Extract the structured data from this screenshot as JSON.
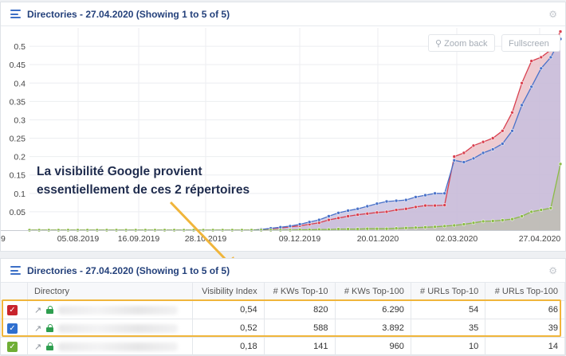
{
  "chart_panel": {
    "title": "Directories - 27.04.2020 (Showing 1 to 5 of 5)",
    "zoom_back": "Zoom back",
    "fullscreen": "Fullscreen"
  },
  "annotation": {
    "line1": "La visibilité Google provient",
    "line2": "essentiellement de ces 2 répertoires"
  },
  "chart_data": {
    "type": "area",
    "x_ticks": [
      "9",
      "05.08.2019",
      "16.09.2019",
      "28.10.2019",
      "09.12.2019",
      "20.01.2020",
      "02.03.2020",
      "27.04.2020"
    ],
    "y_ticks": [
      "0.05",
      "0.1",
      "0.15",
      "0.2",
      "0.25",
      "0.3",
      "0.35",
      "0.4",
      "0.45",
      "0.5"
    ],
    "ylim": [
      0,
      0.55
    ],
    "grid": true,
    "series": [
      {
        "color": "#d9404f",
        "fill": "#e7b9c2",
        "values": [
          0,
          0,
          0,
          0,
          0,
          0,
          0,
          0,
          0,
          0,
          0,
          0,
          0,
          0,
          0,
          0,
          0,
          0,
          0,
          0,
          0,
          0,
          0,
          0,
          0.002,
          0.004,
          0.006,
          0.009,
          0.012,
          0.016,
          0.02,
          0.028,
          0.033,
          0.038,
          0.042,
          0.045,
          0.048,
          0.05,
          0.055,
          0.058,
          0.063,
          0.067,
          0.067,
          0.068,
          0.2,
          0.21,
          0.23,
          0.24,
          0.25,
          0.27,
          0.32,
          0.4,
          0.46,
          0.47,
          0.49,
          0.54
        ]
      },
      {
        "color": "#4a72c9",
        "fill": "#c2bedf",
        "values": [
          0,
          0,
          0,
          0,
          0,
          0,
          0,
          0,
          0,
          0,
          0,
          0,
          0,
          0,
          0,
          0,
          0,
          0,
          0,
          0,
          0,
          0,
          0,
          0,
          0.002,
          0.005,
          0.008,
          0.011,
          0.016,
          0.022,
          0.028,
          0.038,
          0.047,
          0.053,
          0.058,
          0.065,
          0.072,
          0.078,
          0.08,
          0.082,
          0.09,
          0.095,
          0.1,
          0.1,
          0.19,
          0.185,
          0.195,
          0.21,
          0.22,
          0.235,
          0.27,
          0.34,
          0.39,
          0.44,
          0.47,
          0.52
        ]
      },
      {
        "color": "#8bbb46",
        "fill": "#bcbcad",
        "values": [
          0,
          0,
          0,
          0,
          0,
          0,
          0,
          0,
          0,
          0,
          0,
          0,
          0,
          0,
          0,
          0,
          0,
          0,
          0,
          0,
          0,
          0,
          0,
          0,
          0,
          0,
          0,
          0,
          0.001,
          0.001,
          0.002,
          0.002,
          0.003,
          0.003,
          0.003,
          0.004,
          0.004,
          0.004,
          0.005,
          0.006,
          0.007,
          0.008,
          0.009,
          0.011,
          0.013,
          0.016,
          0.02,
          0.024,
          0.025,
          0.027,
          0.03,
          0.038,
          0.05,
          0.055,
          0.06,
          0.18
        ]
      }
    ]
  },
  "table_panel": {
    "title": "Directories - 27.04.2020 (Showing 1 to 5 of 5)",
    "columns": [
      "Directory",
      "Visibility Index",
      "# KWs Top-10",
      "# KWs Top-100",
      "# URLs Top-10",
      "# URLs Top-100"
    ],
    "rows": [
      {
        "checkbox_color": "#c8232c",
        "visibility": "0,54",
        "kws10": "820",
        "kws100": "6.290",
        "urls10": "54",
        "urls100": "66"
      },
      {
        "checkbox_color": "#2f6fcf",
        "visibility": "0,52",
        "kws10": "588",
        "kws100": "3.892",
        "urls10": "35",
        "urls100": "39"
      },
      {
        "checkbox_color": "#6fae35",
        "visibility": "0,18",
        "kws10": "141",
        "kws100": "960",
        "urls10": "10",
        "urls100": "14"
      }
    ]
  }
}
